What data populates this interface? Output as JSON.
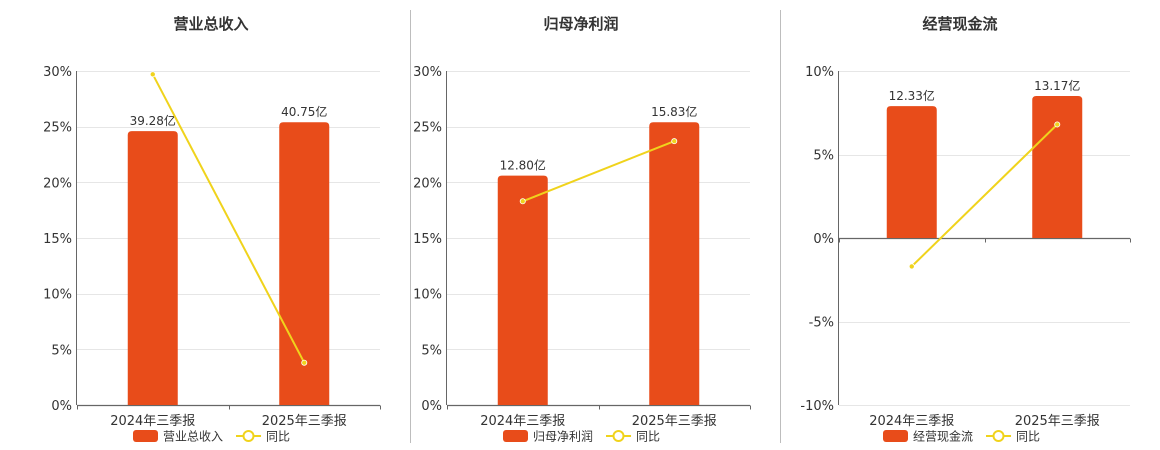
{
  "colors": {
    "bar": "#e84c1a",
    "line": "#f0d31c",
    "grid": "#e6e6e6",
    "axis": "#666666",
    "divider": "#bdbdbd"
  },
  "chart_data": [
    {
      "type": "bar",
      "title": "营业总收入",
      "categories": [
        "2024年三季报",
        "2025年三季报"
      ],
      "ylim": [
        0,
        30
      ],
      "yticks": [
        0,
        5,
        10,
        15,
        20,
        25,
        30
      ],
      "ytick_suffix": "%",
      "series": [
        {
          "name": "营业总收入",
          "kind": "bar",
          "values": [
            24.6,
            25.4
          ],
          "labels": [
            "39.28亿",
            "40.75亿"
          ]
        },
        {
          "name": "同比",
          "kind": "line",
          "values": [
            29.7,
            3.8
          ]
        }
      ],
      "grid": true,
      "legend": "bottom-center"
    },
    {
      "type": "bar",
      "title": "归母净利润",
      "categories": [
        "2024年三季报",
        "2025年三季报"
      ],
      "ylim": [
        0,
        30
      ],
      "yticks": [
        0,
        5,
        10,
        15,
        20,
        25,
        30
      ],
      "ytick_suffix": "%",
      "series": [
        {
          "name": "归母净利润",
          "kind": "bar",
          "values": [
            20.6,
            25.4
          ],
          "labels": [
            "12.80亿",
            "15.83亿"
          ]
        },
        {
          "name": "同比",
          "kind": "line",
          "values": [
            18.3,
            23.7
          ]
        }
      ],
      "grid": true,
      "legend": "bottom-center"
    },
    {
      "type": "bar",
      "title": "经营现金流",
      "categories": [
        "2024年三季报",
        "2025年三季报"
      ],
      "ylim": [
        -10,
        10
      ],
      "yticks": [
        -10,
        -5,
        0,
        5,
        10
      ],
      "ytick_suffix": "%",
      "series": [
        {
          "name": "经营现金流",
          "kind": "bar",
          "values": [
            7.9,
            8.5
          ],
          "labels": [
            "12.33亿",
            "13.17亿"
          ]
        },
        {
          "name": "同比",
          "kind": "line",
          "values": [
            -1.7,
            6.8
          ]
        }
      ],
      "grid": true,
      "legend": "bottom-center"
    }
  ]
}
